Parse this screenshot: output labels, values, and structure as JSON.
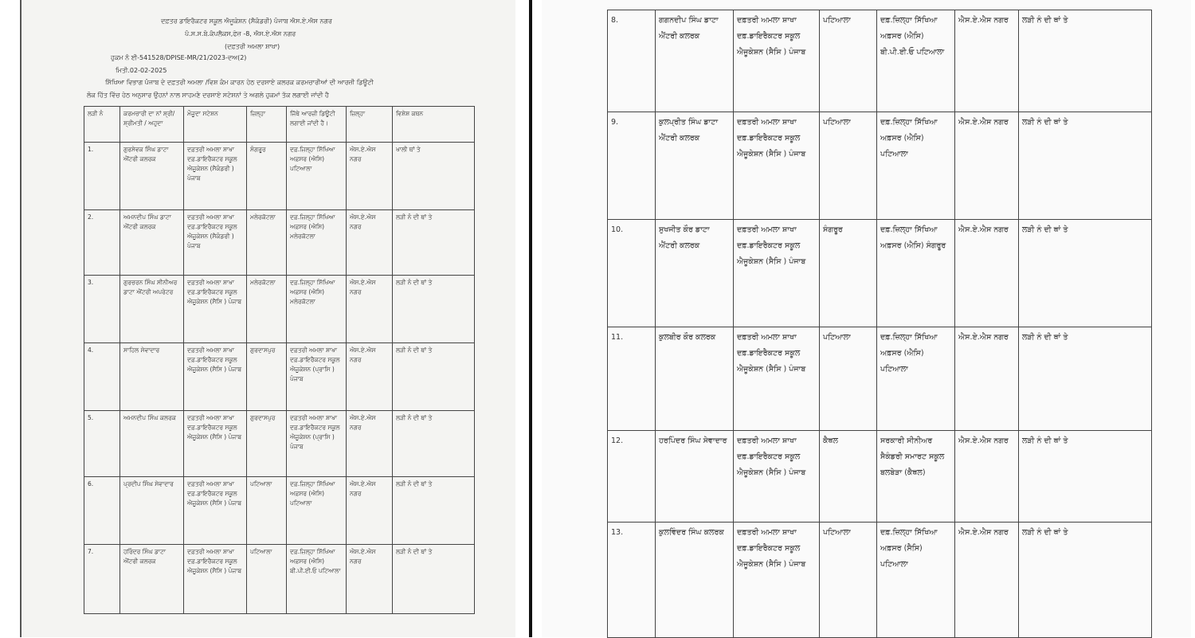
{
  "left_page": {
    "header": {
      "line1": "ਦਫ਼ਤਰ ਡਾਇਰੈਕਟਰ ਸਕੂਲ ਐਜੂਕੇਸ਼ਨ (ਸੈਕੰਡਰੀ) ਪੰਜਾਬ ਐਸ.ਏ.ਐਸ ਨਗਰ",
      "line2": "ਪੰ.ਸ.ਸ.ਬੋ.ਕੰਪਲੈਕਸ,ਫੇਜ਼ -8, ਐਸ.ਏ.ਐਸ ਨਗਰ",
      "line3": "(ਦਫ਼ਤਰੀ ਅਮਲਾ ਸ਼ਾਖਾ)",
      "order_no": "ਹੁਕਮ ਨੰ ਈ-541528/DPISE-MR/21/2023-ਦਅ(2)",
      "date": "ਮਿਤੀ.02-02-2025",
      "intro1": "ਸਿੱਖਿਆ ਵਿਭਾਗ ਪੰਜਾਬ ਦੇ ਦਫ਼ਤਰੀ ਅਮਲਾ /ਵਿਸ਼ ਕੰਮ ਕਾਰਨ ਹੇਠ ਦਰਸਾਏ ਕਲਰਕ ਕਰਮਚਾਰੀਆਂ ਦੀ ਆਰਜ਼ੀ ਡਿਊਟੀ",
      "intro2": "ਲੋਕ ਹਿੱਤ ਵਿੱਚ ਹੇਠ ਅਨੁਸਾਰ ਉਹਨਾਂ ਨਾਲ ਸਾਹਮਣੇ ਦਰਸਾਏ ਸਟੇਸ਼ਨਾਂ ਤੇ ਅਗਲੇ ਹੁਕਮਾਂ ਤੱਕ ਲਗਾਈ ਜਾਂਦੀ ਹੈ"
    },
    "columns": [
      "ਲੜੀ ਨੰ",
      "ਕਰਮਚਾਰੀ ਦਾ ਨਾਂ ਸ਼੍ਰੀ/ਸ਼੍ਰੀਮਤੀ / ਅਹੁਦਾ",
      "ਮੌਜੂਦਾ ਸਟੇਸ਼ਨ",
      "ਜ਼ਿਲ੍ਹਾ",
      "ਜਿੱਥੇ ਆਰਜ਼ੀ ਡਿਊਟੀ ਲਗਾਈ ਜਾਂਦੀ ਹੈ।",
      "ਜ਼ਿਲ੍ਹਾ",
      "ਵਿਸ਼ੇਸ਼ ਕਥਨ"
    ],
    "rows": [
      [
        "1.",
        "ਗੁਰਸੇਵਕ ਸਿੰਘ ਡਾਟਾ ਐਂਟਰੀ ਕਲਰਕ",
        "ਦਫ਼ਤਰੀ ਅਮਲਾ ਸ਼ਾਖਾ ਦਫ਼.ਡਾਇਰੈਕਟਰ ਸਕੂਲ ਐਜੂਕੇਸ਼ਨ (ਸੈਕੰਡਰੀ ) ਪੰਜਾਬ",
        "ਸੰਗਰੂਰ",
        "ਦਫ਼.ਜ਼ਿਲ੍ਹਾ ਸਿੱਖਿਆ ਅਫ਼ਸਰ (ਐਸਿ) ਪਟਿਆਲਾ",
        "ਐਸ.ਏ.ਐਸ ਨਗਰ",
        "ਖਾਲੀ ਥਾਂ ਤੇ"
      ],
      [
        "2.",
        "ਅਮਨਦੀਪ ਸਿੰਘ ਡਾਟਾ ਐਂਟਰੀ ਕਲਰਕ",
        "ਦਫ਼ਤਰੀ ਅਮਲਾ ਸ਼ਾਖਾ ਦਫ਼.ਡਾਇਰੈਕਟਰ ਸਕੂਲ ਐਜੂਕੇਸ਼ਨ (ਸੈਕੰਡਰੀ ) ਪੰਜਾਬ",
        "ਮਲੇਰਕੋਟਲਾ",
        "ਦਫ਼.ਜ਼ਿਲ੍ਹਾ ਸਿੱਖਿਆ ਅਫ਼ਸਰ (ਐਸਿ) ਮਲੇਰਕੋਟਲਾ",
        "ਐਸ.ਏ.ਐਸ ਨਗਰ",
        "ਲੜੀ ਨੰ ਦੀ ਥਾਂ ਤੇ"
      ],
      [
        "3.",
        "ਗੁਰਚਰਨ ਸਿੰਘ ਸੀਨੀਅਰ ਡਾਟਾ ਐਂਟਰੀ ਅਪਰੇਟਰ",
        "ਦਫ਼ਤਰੀ ਅਮਲਾ ਸ਼ਾਖਾ ਦਫ਼.ਡਾਇਰੈਕਟਰ ਸਕੂਲ ਐਜੂਕੇਸ਼ਨ (ਸੈਸਿ ) ਪੰਜਾਬ",
        "ਮਲੇਰਕੋਟਲਾ",
        "ਦਫ਼.ਜ਼ਿਲ੍ਹਾ ਸਿੱਖਿਆ ਅਫ਼ਸਰ (ਐਸਿ) ਮਲੇਰਕੋਟਲਾ",
        "ਐਸ.ਏ.ਐਸ ਨਗਰ",
        "ਲੜੀ ਨੰ ਦੀ ਥਾਂ ਤੇ"
      ],
      [
        "4.",
        "ਸਾਹਿਲ ਸੇਵਾਦਾਰ",
        "ਦਫ਼ਤਰੀ ਅਮਲਾ ਸ਼ਾਖਾ ਦਫ਼.ਡਾਇਰੈਕਟਰ ਸਕੂਲ ਐਜੂਕੇਸ਼ਨ (ਸੈਸਿ ) ਪੰਜਾਬ",
        "ਗੁਰਦਾਸਪੁਰ",
        "ਦਫ਼ਤਰੀ ਅਮਲਾ ਸ਼ਾਖਾ ਦਫ਼.ਡਾਇਰੈਕਟਰ ਸਕੂਲ ਐਜੂਕੇਸ਼ਨ (ਪ੍ਰਾਸਿ ) ਪੰਜਾਬ",
        "ਐਸ.ਏ.ਐਸ ਨਗਰ",
        "ਲੜੀ ਨੰ ਦੀ ਥਾਂ ਤੇ"
      ],
      [
        "5.",
        "ਅਮਨਦੀਪ ਸਿੰਘ ਕਲਰਕ",
        "ਦਫ਼ਤਰੀ ਅਮਲਾ ਸ਼ਾਖਾ ਦਫ਼.ਡਾਇਰੈਕਟਰ ਸਕੂਲ ਐਜੂਕੇਸ਼ਨ (ਸੈਸਿ ) ਪੰਜਾਬ",
        "ਗੁਰਦਾਸਪੁਰ",
        "ਦਫ਼ਤਰੀ ਅਮਲਾ ਸ਼ਾਖਾ ਦਫ਼.ਡਾਇਰੈਕਟਰ ਸਕੂਲ ਐਜੂਕੇਸ਼ਨ (ਪ੍ਰਾਸਿ ) ਪੰਜਾਬ",
        "ਐਸ.ਏ.ਐਸ ਨਗਰ",
        "ਲੜੀ ਨੰ ਦੀ ਥਾਂ ਤੇ"
      ],
      [
        "6.",
        "ਪ੍ਰਦੀਪ ਸਿੰਘ ਸੇਵਾਦਾਰ",
        "ਦਫ਼ਤਰੀ ਅਮਲਾ ਸ਼ਾਖਾ ਦਫ਼.ਡਾਇਰੈਕਟਰ ਸਕੂਲ ਐਜੂਕੇਸ਼ਨ (ਸੈਸਿ ) ਪੰਜਾਬ",
        "ਪਟਿਆਲਾ",
        "ਦਫ਼.ਜ਼ਿਲ੍ਹਾ ਸਿੱਖਿਆ ਅਫ਼ਸਰ (ਐਸਿ) ਪਟਿਆਲਾ",
        "ਐਸ.ਏ.ਐਸ ਨਗਰ",
        "ਲੜੀ ਨੰ ਦੀ ਥਾਂ ਤੇ"
      ],
      [
        "7.",
        "ਹਰਿੰਦਰ ਸਿੰਘ ਡਾਟਾ ਐਂਟਰੀ ਕਲਰਕ",
        "ਦਫ਼ਤਰੀ ਅਮਲਾ ਸ਼ਾਖਾ ਦਫ਼.ਡਾਇਰੈਕਟਰ ਸਕੂਲ ਐਜੂਕੇਸ਼ਨ (ਸੈਸਿ ) ਪੰਜਾਬ",
        "ਪਟਿਆਲਾ",
        "ਦਫ਼.ਜ਼ਿਲ੍ਹਾ ਸਿੱਖਿਆ ਅਫ਼ਸਰ (ਐਸਿ) ਬੀ.ਪੀ.ਈ.ਓ ਪਟਿਆਲਾ",
        "ਐਸ.ਏ.ਐਸ ਨਗਰ",
        "ਲੜੀ ਨੰ ਦੀ ਥਾਂ ਤੇ"
      ]
    ]
  },
  "right_page": {
    "rows": [
      [
        "8.",
        "ਗਗਨਦੀਪ ਸਿੰਘ ਡਾਟਾ ਐਂਟਰੀ ਕਲਰਕ",
        "ਦਫ਼ਤਰੀ ਅਮਲਾ ਸ਼ਾਖਾ ਦਫ਼.ਡਾਇਰੈਕਟਰ ਸਕੂਲ ਐਜੂਕੇਸ਼ਨ (ਸੈਸਿ ) ਪੰਜਾਬ",
        "ਪਟਿਆਲਾ",
        "ਦਫ਼.ਜ਼ਿਲ੍ਹਾ ਸਿੱਖਿਆ ਅਫ਼ਸਰ (ਐਸਿ) ਬੀ.ਪੀ.ਈ.ਓ ਪਟਿਆਲਾ",
        "ਐਸ.ਏ.ਐਸ ਨਗਰ",
        "ਲੜੀ ਨੰ ਦੀ ਥਾਂ ਤੇ"
      ],
      [
        "9.",
        "ਕੁਲਪ੍ਰੀਤ ਸਿੰਘ ਡਾਟਾ ਐਂਟਰੀ ਕਲਰਕ",
        "ਦਫ਼ਤਰੀ ਅਮਲਾ ਸ਼ਾਖਾ ਦਫ਼.ਡਾਇਰੈਕਟਰ ਸਕੂਲ ਐਜੂਕੇਸ਼ਨ (ਸੈਸਿ ) ਪੰਜਾਬ",
        "ਪਟਿਆਲਾ",
        "ਦਫ਼.ਜ਼ਿਲ੍ਹਾ ਸਿੱਖਿਆ ਅਫ਼ਸਰ (ਐਸਿ) ਪਟਿਆਲਾ",
        "ਐਸ.ਏ.ਐਸ ਨਗਰ",
        "ਲੜੀ ਨੰ ਦੀ ਥਾਂ ਤੇ"
      ],
      [
        "10.",
        "ਸੁਖਜੀਤ ਕੌਰ ਡਾਟਾ ਐਂਟਰੀ ਕਲਰਕ",
        "ਦਫ਼ਤਰੀ ਅਮਲਾ ਸ਼ਾਖਾ ਦਫ਼.ਡਾਇਰੈਕਟਰ ਸਕੂਲ ਐਜੂਕੇਸ਼ਨ (ਸੈਸਿ ) ਪੰਜਾਬ",
        "ਸੰਗਰੂਰ",
        "ਦਫ਼.ਜ਼ਿਲ੍ਹਾ ਸਿੱਖਿਆ ਅਫ਼ਸਰ (ਐਸਿ) ਸੰਗਰੂਰ",
        "ਐਸ.ਏ.ਐਸ ਨਗਰ",
        "ਲੜੀ ਨੰ ਦੀ ਥਾਂ ਤੇ"
      ],
      [
        "11.",
        "ਕੁਲਬੀਰ ਕੌਰ ਕਲਰਕ",
        "ਦਫ਼ਤਰੀ ਅਮਲਾ ਸ਼ਾਖਾ ਦਫ਼.ਡਾਇਰੈਕਟਰ ਸਕੂਲ ਐਜੂਕੇਸ਼ਨ (ਸੈਸਿ ) ਪੰਜਾਬ",
        "ਪਟਿਆਲਾ",
        "ਦਫ਼.ਜ਼ਿਲ੍ਹਾ ਸਿੱਖਿਆ ਅਫ਼ਸਰ (ਐਸਿ) ਪਟਿਆਲਾ",
        "ਐਸ.ਏ.ਐਸ ਨਗਰ",
        "ਲੜੀ ਨੰ ਦੀ ਥਾਂ ਤੇ"
      ],
      [
        "12.",
        "ਹਰਪਿੰਦਰ ਸਿੰਘ ਸੇਵਾਦਾਰ",
        "ਦਫ਼ਤਰੀ ਅਮਲਾ ਸ਼ਾਖਾ ਦਫ਼.ਡਾਇਰੈਕਟਰ ਸਕੂਲ ਐਜੂਕੇਸ਼ਨ (ਸੈਸਿ ) ਪੰਜਾਬ",
        "ਕੈਥਲ",
        "ਸਰਕਾਰੀ ਸੀਨੀਅਰ ਸੈਕੰਡਰੀ ਸਮਾਰਟ ਸਕੂਲ ਬਲਬੇੜਾ (ਕੈਥਲ)",
        "ਐਸ.ਏ.ਐਸ ਨਗਰ",
        "ਲੜੀ ਨੰ ਦੀ ਥਾਂ ਤੇ"
      ],
      [
        "13.",
        "ਕੁਲਵਿੰਦਰ ਸਿੰਘ ਕਲਰਕ",
        "ਦਫ਼ਤਰੀ ਅਮਲਾ ਸ਼ਾਖਾ ਦਫ਼.ਡਾਇਰੈਕਟਰ ਸਕੂਲ ਐਜੂਕੇਸ਼ਨ (ਸੈਸਿ ) ਪੰਜਾਬ",
        "ਪਟਿਆਲਾ",
        "ਦਫ਼.ਜ਼ਿਲ੍ਹਾ ਸਿੱਖਿਆ ਅਫ਼ਸਰ (ਸੈਸਿ) ਪਟਿਆਲਾ",
        "ਐਸ.ਏ.ਐਸ ਨਗਰ",
        "ਲੜੀ ਨੰ ਦੀ ਥਾਂ ਤੇ"
      ]
    ]
  }
}
